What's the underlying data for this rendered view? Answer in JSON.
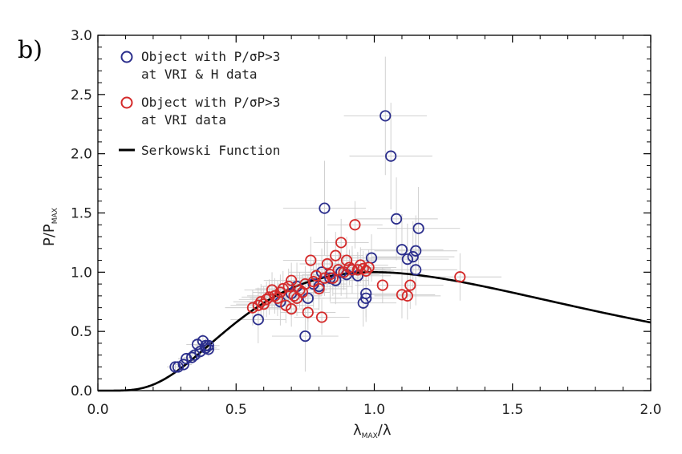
{
  "panel_label": "b)",
  "colors": {
    "blue": "#2b2e8c",
    "red": "#d42a2a",
    "curve": "#000000",
    "errorbar": "#cccccc"
  },
  "chart_data": {
    "type": "scatter",
    "title": "",
    "xlabel": "λMAX/λ",
    "xlabel_parts": {
      "main": "λ",
      "sub": "MAX",
      "tail": "/λ"
    },
    "ylabel": "P/PMAX",
    "ylabel_parts": {
      "main": "P/P",
      "sub": "MAX"
    },
    "xlim": [
      0.0,
      2.0
    ],
    "ylim": [
      0.0,
      3.0
    ],
    "xticks": [
      {
        "value": 0.0,
        "label": "0.0"
      },
      {
        "value": 0.5,
        "label": "0.5"
      },
      {
        "value": 1.0,
        "label": "1.0"
      },
      {
        "value": 1.5,
        "label": "1.5"
      },
      {
        "value": 2.0,
        "label": "2.0"
      }
    ],
    "yticks": [
      {
        "value": 0.0,
        "label": "0.0"
      },
      {
        "value": 0.5,
        "label": "0.5"
      },
      {
        "value": 1.0,
        "label": "1.0"
      },
      {
        "value": 1.5,
        "label": "1.5"
      },
      {
        "value": 2.0,
        "label": "2.0"
      },
      {
        "value": 2.5,
        "label": "2.5"
      },
      {
        "value": 3.0,
        "label": "3.0"
      }
    ],
    "legend": [
      {
        "line1": "Object with P/σP>3",
        "line2": "at VRI & H data",
        "marker": "circle",
        "color": "#2b2e8c"
      },
      {
        "line1": "Object with P/σP>3",
        "line2": "at VRI data",
        "marker": "circle",
        "color": "#d42a2a"
      },
      {
        "line1": "Serkowski Function",
        "line2": "",
        "marker": "line",
        "color": "#000000"
      }
    ],
    "curve": {
      "name": "Serkowski Function",
      "K": 1.15,
      "xmin": 0.0,
      "xmax": 2.0
    },
    "series": [
      {
        "name": "Object with P/σP>3 at VRI & H data",
        "color": "#2b2e8c",
        "points": [
          {
            "x": 0.28,
            "y": 0.2,
            "ex": 0.03,
            "ey": 0.04
          },
          {
            "x": 0.29,
            "y": 0.2,
            "ex": 0.03,
            "ey": 0.04
          },
          {
            "x": 0.31,
            "y": 0.22,
            "ex": 0.03,
            "ey": 0.04
          },
          {
            "x": 0.32,
            "y": 0.27,
            "ex": 0.03,
            "ey": 0.05
          },
          {
            "x": 0.34,
            "y": 0.28,
            "ex": 0.03,
            "ey": 0.05
          },
          {
            "x": 0.35,
            "y": 0.3,
            "ex": 0.03,
            "ey": 0.05
          },
          {
            "x": 0.36,
            "y": 0.39,
            "ex": 0.04,
            "ey": 0.06
          },
          {
            "x": 0.37,
            "y": 0.33,
            "ex": 0.04,
            "ey": 0.06
          },
          {
            "x": 0.38,
            "y": 0.42,
            "ex": 0.04,
            "ey": 0.06
          },
          {
            "x": 0.39,
            "y": 0.36,
            "ex": 0.04,
            "ey": 0.06
          },
          {
            "x": 0.39,
            "y": 0.38,
            "ex": 0.04,
            "ey": 0.06
          },
          {
            "x": 0.4,
            "y": 0.35,
            "ex": 0.04,
            "ey": 0.06
          },
          {
            "x": 0.4,
            "y": 0.38,
            "ex": 0.04,
            "ey": 0.06
          },
          {
            "x": 0.58,
            "y": 0.6,
            "ex": 0.1,
            "ey": 0.2
          },
          {
            "x": 0.66,
            "y": 0.75,
            "ex": 0.12,
            "ey": 0.2
          },
          {
            "x": 0.7,
            "y": 0.82,
            "ex": 0.12,
            "ey": 0.2
          },
          {
            "x": 0.72,
            "y": 0.88,
            "ex": 0.12,
            "ey": 0.2
          },
          {
            "x": 0.75,
            "y": 0.46,
            "ex": 0.12,
            "ey": 0.3
          },
          {
            "x": 0.76,
            "y": 0.78,
            "ex": 0.12,
            "ey": 0.2
          },
          {
            "x": 0.78,
            "y": 0.9,
            "ex": 0.12,
            "ey": 0.2
          },
          {
            "x": 0.8,
            "y": 0.88,
            "ex": 0.12,
            "ey": 0.2
          },
          {
            "x": 0.81,
            "y": 1.0,
            "ex": 0.12,
            "ey": 0.2
          },
          {
            "x": 0.82,
            "y": 1.54,
            "ex": 0.15,
            "ey": 0.4
          },
          {
            "x": 0.84,
            "y": 0.95,
            "ex": 0.12,
            "ey": 0.2
          },
          {
            "x": 0.86,
            "y": 0.93,
            "ex": 0.12,
            "ey": 0.2
          },
          {
            "x": 0.88,
            "y": 1.0,
            "ex": 0.12,
            "ey": 0.2
          },
          {
            "x": 0.9,
            "y": 0.98,
            "ex": 0.12,
            "ey": 0.2
          },
          {
            "x": 0.92,
            "y": 1.02,
            "ex": 0.12,
            "ey": 0.2
          },
          {
            "x": 0.94,
            "y": 0.97,
            "ex": 0.12,
            "ey": 0.2
          },
          {
            "x": 0.96,
            "y": 0.74,
            "ex": 0.12,
            "ey": 0.2
          },
          {
            "x": 0.97,
            "y": 0.78,
            "ex": 0.12,
            "ey": 0.2
          },
          {
            "x": 0.97,
            "y": 0.82,
            "ex": 0.12,
            "ey": 0.2
          },
          {
            "x": 0.99,
            "y": 1.12,
            "ex": 0.12,
            "ey": 0.2
          },
          {
            "x": 1.04,
            "y": 2.32,
            "ex": 0.15,
            "ey": 0.5
          },
          {
            "x": 1.06,
            "y": 1.98,
            "ex": 0.15,
            "ey": 0.45
          },
          {
            "x": 1.08,
            "y": 1.45,
            "ex": 0.15,
            "ey": 0.35
          },
          {
            "x": 1.1,
            "y": 1.19,
            "ex": 0.15,
            "ey": 0.3
          },
          {
            "x": 1.12,
            "y": 1.11,
            "ex": 0.15,
            "ey": 0.3
          },
          {
            "x": 1.14,
            "y": 1.13,
            "ex": 0.15,
            "ey": 0.3
          },
          {
            "x": 1.15,
            "y": 1.02,
            "ex": 0.15,
            "ey": 0.3
          },
          {
            "x": 1.15,
            "y": 1.18,
            "ex": 0.15,
            "ey": 0.3
          },
          {
            "x": 1.16,
            "y": 1.37,
            "ex": 0.15,
            "ey": 0.35
          }
        ]
      },
      {
        "name": "Object with P/σP>3 at VRI data",
        "color": "#d42a2a",
        "points": [
          {
            "x": 0.56,
            "y": 0.7,
            "ex": 0.1,
            "ey": 0.15
          },
          {
            "x": 0.58,
            "y": 0.72,
            "ex": 0.1,
            "ey": 0.15
          },
          {
            "x": 0.59,
            "y": 0.75,
            "ex": 0.1,
            "ey": 0.15
          },
          {
            "x": 0.6,
            "y": 0.73,
            "ex": 0.1,
            "ey": 0.15
          },
          {
            "x": 0.61,
            "y": 0.77,
            "ex": 0.1,
            "ey": 0.15
          },
          {
            "x": 0.62,
            "y": 0.79,
            "ex": 0.1,
            "ey": 0.15
          },
          {
            "x": 0.63,
            "y": 0.85,
            "ex": 0.1,
            "ey": 0.15
          },
          {
            "x": 0.64,
            "y": 0.8,
            "ex": 0.1,
            "ey": 0.15
          },
          {
            "x": 0.65,
            "y": 0.78,
            "ex": 0.1,
            "ey": 0.15
          },
          {
            "x": 0.66,
            "y": 0.83,
            "ex": 0.1,
            "ey": 0.15
          },
          {
            "x": 0.67,
            "y": 0.86,
            "ex": 0.1,
            "ey": 0.15
          },
          {
            "x": 0.68,
            "y": 0.72,
            "ex": 0.1,
            "ey": 0.15
          },
          {
            "x": 0.69,
            "y": 0.88,
            "ex": 0.1,
            "ey": 0.15
          },
          {
            "x": 0.7,
            "y": 0.69,
            "ex": 0.1,
            "ey": 0.15
          },
          {
            "x": 0.7,
            "y": 0.93,
            "ex": 0.1,
            "ey": 0.15
          },
          {
            "x": 0.71,
            "y": 0.8,
            "ex": 0.1,
            "ey": 0.15
          },
          {
            "x": 0.72,
            "y": 0.78,
            "ex": 0.1,
            "ey": 0.15
          },
          {
            "x": 0.73,
            "y": 0.85,
            "ex": 0.1,
            "ey": 0.15
          },
          {
            "x": 0.74,
            "y": 0.83,
            "ex": 0.1,
            "ey": 0.15
          },
          {
            "x": 0.75,
            "y": 0.9,
            "ex": 0.1,
            "ey": 0.15
          },
          {
            "x": 0.76,
            "y": 0.66,
            "ex": 0.1,
            "ey": 0.15
          },
          {
            "x": 0.77,
            "y": 1.1,
            "ex": 0.1,
            "ey": 0.2
          },
          {
            "x": 0.78,
            "y": 0.92,
            "ex": 0.1,
            "ey": 0.15
          },
          {
            "x": 0.79,
            "y": 0.97,
            "ex": 0.1,
            "ey": 0.15
          },
          {
            "x": 0.8,
            "y": 0.86,
            "ex": 0.1,
            "ey": 0.15
          },
          {
            "x": 0.81,
            "y": 0.62,
            "ex": 0.1,
            "ey": 0.15
          },
          {
            "x": 0.82,
            "y": 0.95,
            "ex": 0.1,
            "ey": 0.15
          },
          {
            "x": 0.83,
            "y": 1.07,
            "ex": 0.1,
            "ey": 0.2
          },
          {
            "x": 0.84,
            "y": 0.98,
            "ex": 0.1,
            "ey": 0.15
          },
          {
            "x": 0.85,
            "y": 0.95,
            "ex": 0.1,
            "ey": 0.15
          },
          {
            "x": 0.86,
            "y": 1.14,
            "ex": 0.1,
            "ey": 0.2
          },
          {
            "x": 0.87,
            "y": 1.02,
            "ex": 0.1,
            "ey": 0.15
          },
          {
            "x": 0.88,
            "y": 1.25,
            "ex": 0.1,
            "ey": 0.2
          },
          {
            "x": 0.89,
            "y": 1.0,
            "ex": 0.1,
            "ey": 0.15
          },
          {
            "x": 0.9,
            "y": 1.1,
            "ex": 0.1,
            "ey": 0.2
          },
          {
            "x": 0.91,
            "y": 1.04,
            "ex": 0.1,
            "ey": 0.15
          },
          {
            "x": 0.92,
            "y": 1.02,
            "ex": 0.1,
            "ey": 0.15
          },
          {
            "x": 0.93,
            "y": 1.4,
            "ex": 0.1,
            "ey": 0.2
          },
          {
            "x": 0.94,
            "y": 1.02,
            "ex": 0.1,
            "ey": 0.15
          },
          {
            "x": 0.95,
            "y": 1.06,
            "ex": 0.1,
            "ey": 0.15
          },
          {
            "x": 0.96,
            "y": 1.03,
            "ex": 0.1,
            "ey": 0.15
          },
          {
            "x": 0.97,
            "y": 1.01,
            "ex": 0.1,
            "ey": 0.15
          },
          {
            "x": 0.98,
            "y": 1.04,
            "ex": 0.1,
            "ey": 0.15
          },
          {
            "x": 1.03,
            "y": 0.89,
            "ex": 0.1,
            "ey": 0.15
          },
          {
            "x": 1.1,
            "y": 0.81,
            "ex": 0.12,
            "ey": 0.2
          },
          {
            "x": 1.12,
            "y": 0.8,
            "ex": 0.12,
            "ey": 0.2
          },
          {
            "x": 1.13,
            "y": 0.89,
            "ex": 0.12,
            "ey": 0.2
          },
          {
            "x": 1.31,
            "y": 0.96,
            "ex": 0.15,
            "ey": 0.2
          }
        ]
      }
    ]
  }
}
